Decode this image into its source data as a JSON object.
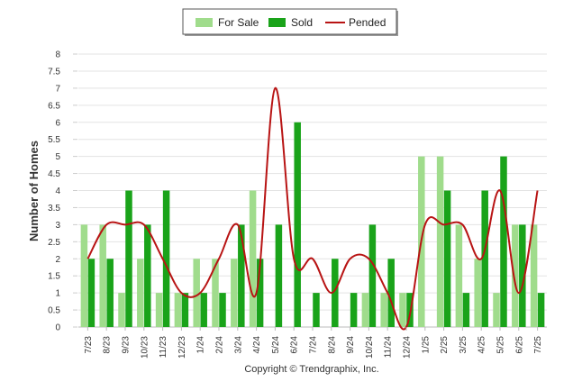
{
  "chart_data": {
    "type": "bar",
    "categories": [
      "7/23",
      "8/23",
      "9/23",
      "10/23",
      "11/23",
      "12/23",
      "1/24",
      "2/24",
      "3/24",
      "4/24",
      "5/24",
      "6/24",
      "7/24",
      "8/24",
      "9/24",
      "10/24",
      "11/24",
      "12/24",
      "1/25",
      "2/25",
      "3/25",
      "4/25",
      "5/25",
      "6/25",
      "7/25"
    ],
    "series": [
      {
        "name": "For Sale",
        "kind": "bar",
        "color": "#a0dc8c",
        "values": [
          3,
          3,
          1,
          2,
          1,
          1,
          2,
          2,
          2,
          4,
          0,
          0,
          0,
          0,
          0,
          1,
          1,
          1,
          5,
          5,
          3,
          2,
          1,
          3,
          3
        ]
      },
      {
        "name": "Sold",
        "kind": "bar",
        "color": "#1aa31a",
        "values": [
          2,
          2,
          4,
          3,
          4,
          1,
          1,
          1,
          3,
          2,
          3,
          6,
          1,
          2,
          1,
          3,
          2,
          1,
          0,
          4,
          1,
          4,
          5,
          3,
          1
        ]
      },
      {
        "name": "Pended",
        "kind": "line",
        "color": "#b81414",
        "values": [
          2,
          3,
          3,
          3,
          2,
          1,
          1,
          2,
          3,
          1,
          7,
          2,
          2,
          1,
          2,
          2,
          1,
          0,
          3,
          3,
          3,
          2,
          4,
          1,
          4
        ]
      }
    ],
    "ylabel": "Number of Homes",
    "xlabel": "",
    "ylim": [
      0,
      8
    ],
    "yticks": [
      "0",
      "0.5",
      "1",
      "1.5",
      "2",
      "2.5",
      "3",
      "3.5",
      "4",
      "4.5",
      "5",
      "5.5",
      "6",
      "6.5",
      "7",
      "7.5",
      "8"
    ],
    "legend_position": "top-center",
    "grid": true,
    "footer": "Copyright © Trendgraphix, Inc."
  }
}
